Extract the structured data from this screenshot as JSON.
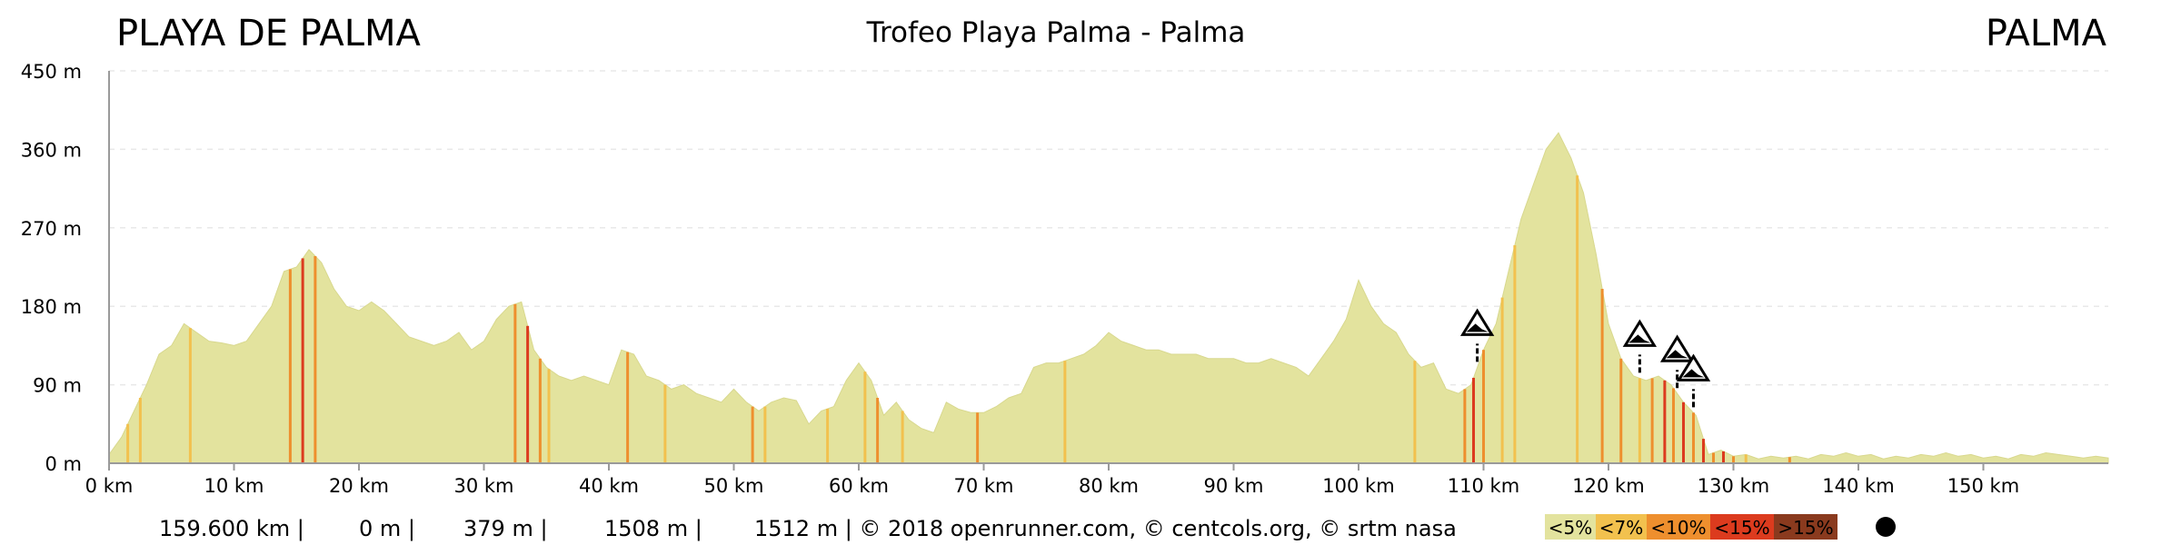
{
  "header": {
    "start_label": "PLAYA DE PALMA",
    "title": "Trofeo Playa Palma - Palma",
    "end_label": "PALMA"
  },
  "footer": {
    "distance": "159.600 km |",
    "min_alt": "0 m |",
    "max_alt": "379 m |",
    "ascent": "1508 m |",
    "descent_credits": "1512 m | © 2018 openrunner.com, © centcols.org, © srtm nasa"
  },
  "legend": [
    {
      "label": "<5%",
      "color": "#e3e39e"
    },
    {
      "label": "<7%",
      "color": "#f2c14e"
    },
    {
      "label": "<10%",
      "color": "#ee8f2e"
    },
    {
      "label": "<15%",
      "color": "#dc3b1e"
    },
    {
      "label": ">15%",
      "color": "#8a3a1e"
    }
  ],
  "colors": {
    "fill": "#e3e39e",
    "grid": "#e8e8e8",
    "axis": "#9a9a9a"
  },
  "icons": {
    "climb_marker": "mountain-pass-icon",
    "legend_marker": "black-dot-icon"
  },
  "chart_data": {
    "type": "area",
    "xlabel": "",
    "ylabel": "",
    "xlim": [
      0,
      160
    ],
    "ylim": [
      0,
      450
    ],
    "x_ticks": [
      0,
      10,
      20,
      30,
      40,
      50,
      60,
      70,
      80,
      90,
      100,
      110,
      120,
      130,
      140,
      150
    ],
    "x_tick_labels": [
      "0 km",
      "10 km",
      "20 km",
      "30 km",
      "40 km",
      "50 km",
      "60 km",
      "70 km",
      "80 km",
      "90 km",
      "100 km",
      "110 km",
      "120 km",
      "130 km",
      "140 km",
      "150 km"
    ],
    "y_ticks": [
      0,
      90,
      180,
      270,
      360,
      450
    ],
    "y_tick_labels": [
      "0 m",
      "90 m",
      "180 m",
      "270 m",
      "360 m",
      "450 m"
    ],
    "grid": true,
    "series": [
      {
        "x": [
          0,
          1,
          2,
          3,
          4,
          5,
          6,
          7,
          8,
          9,
          10,
          11,
          12,
          13,
          14,
          15,
          16,
          17,
          18,
          19,
          20,
          21,
          22,
          23,
          24,
          25,
          26,
          27,
          28,
          29,
          30,
          31,
          32,
          33,
          34,
          35,
          36,
          37,
          38,
          39,
          40,
          41,
          42,
          43,
          44,
          45,
          46,
          47,
          48,
          49,
          50,
          51,
          52,
          53,
          54,
          55,
          56,
          57,
          58,
          59,
          60,
          61,
          62,
          63,
          64,
          65,
          66,
          67,
          68,
          69,
          70,
          71,
          72,
          73,
          74,
          75,
          76,
          77,
          78,
          79,
          80,
          81,
          82,
          83,
          84,
          85,
          86,
          87,
          88,
          89,
          90,
          91,
          92,
          93,
          94,
          95,
          96,
          97,
          98,
          99,
          100,
          101,
          102,
          103,
          104,
          105,
          106,
          107,
          108,
          109,
          110,
          111,
          112,
          113,
          114,
          115,
          116,
          117,
          118,
          119,
          120,
          121,
          122,
          123,
          124,
          125,
          126,
          127,
          128,
          129,
          130,
          131,
          132,
          133,
          134,
          135,
          136,
          137,
          138,
          139,
          140,
          141,
          142,
          143,
          144,
          145,
          146,
          147,
          148,
          149,
          150,
          151,
          152,
          153,
          154,
          155,
          156,
          157,
          158,
          159,
          160
        ],
        "y": [
          10,
          30,
          60,
          90,
          125,
          135,
          160,
          150,
          140,
          138,
          135,
          140,
          160,
          180,
          220,
          225,
          245,
          230,
          200,
          180,
          175,
          185,
          175,
          160,
          145,
          140,
          135,
          140,
          150,
          130,
          140,
          165,
          180,
          185,
          130,
          110,
          100,
          95,
          100,
          95,
          90,
          130,
          125,
          100,
          95,
          85,
          90,
          80,
          75,
          70,
          85,
          70,
          60,
          70,
          75,
          72,
          45,
          60,
          65,
          95,
          115,
          95,
          55,
          70,
          50,
          40,
          35,
          70,
          62,
          58,
          58,
          65,
          75,
          80,
          110,
          115,
          115,
          120,
          125,
          135,
          150,
          140,
          135,
          130,
          130,
          125,
          125,
          125,
          120,
          120,
          120,
          115,
          115,
          120,
          115,
          110,
          100,
          120,
          140,
          165,
          210,
          180,
          160,
          150,
          125,
          110,
          115,
          85,
          80,
          90,
          130,
          160,
          220,
          280,
          320,
          360,
          379,
          350,
          310,
          240,
          160,
          120,
          100,
          95,
          100,
          90,
          70,
          55,
          10,
          15,
          8,
          10,
          5,
          8,
          6,
          8,
          5,
          10,
          8,
          12,
          8,
          10,
          5,
          8,
          6,
          10,
          8,
          12,
          8,
          10,
          6,
          8,
          5,
          10,
          8,
          12,
          10,
          8,
          6,
          8,
          6
        ]
      }
    ],
    "gradient_bands": [
      {
        "x": 1.5,
        "grade": "<7%"
      },
      {
        "x": 2.5,
        "grade": "<7%"
      },
      {
        "x": 6.5,
        "grade": "<7%"
      },
      {
        "x": 14.5,
        "grade": "<10%"
      },
      {
        "x": 15.5,
        "grade": "<15%"
      },
      {
        "x": 16.5,
        "grade": "<10%"
      },
      {
        "x": 32.5,
        "grade": "<10%"
      },
      {
        "x": 33.5,
        "grade": "<15%"
      },
      {
        "x": 34.5,
        "grade": "<10%"
      },
      {
        "x": 35.2,
        "grade": "<7%"
      },
      {
        "x": 41.5,
        "grade": "<10%"
      },
      {
        "x": 44.5,
        "grade": "<7%"
      },
      {
        "x": 51.5,
        "grade": "<10%"
      },
      {
        "x": 52.5,
        "grade": "<7%"
      },
      {
        "x": 57.5,
        "grade": "<7%"
      },
      {
        "x": 60.5,
        "grade": "<7%"
      },
      {
        "x": 61.5,
        "grade": "<10%"
      },
      {
        "x": 63.5,
        "grade": "<7%"
      },
      {
        "x": 69.5,
        "grade": "<10%"
      },
      {
        "x": 76.5,
        "grade": "<7%"
      },
      {
        "x": 104.5,
        "grade": "<7%"
      },
      {
        "x": 108.5,
        "grade": "<10%"
      },
      {
        "x": 109.2,
        "grade": "<15%"
      },
      {
        "x": 110,
        "grade": "<10%"
      },
      {
        "x": 111.5,
        "grade": "<7%"
      },
      {
        "x": 112.5,
        "grade": "<7%"
      },
      {
        "x": 117.5,
        "grade": "<7%"
      },
      {
        "x": 119.5,
        "grade": "<10%"
      },
      {
        "x": 121,
        "grade": "<10%"
      },
      {
        "x": 122.5,
        "grade": "<7%"
      },
      {
        "x": 123.5,
        "grade": "<10%"
      },
      {
        "x": 124.5,
        "grade": "<15%"
      },
      {
        "x": 125.2,
        "grade": "<10%"
      },
      {
        "x": 126,
        "grade": "<15%"
      },
      {
        "x": 126.8,
        "grade": "<10%"
      },
      {
        "x": 127.6,
        "grade": "<15%"
      },
      {
        "x": 128.4,
        "grade": "<10%"
      },
      {
        "x": 129.2,
        "grade": "<15%"
      },
      {
        "x": 130,
        "grade": "<10%"
      },
      {
        "x": 131,
        "grade": "<7%"
      },
      {
        "x": 134.5,
        "grade": "<10%"
      }
    ],
    "climb_markers": [
      109.5,
      122.5,
      125.5,
      126.8
    ]
  }
}
